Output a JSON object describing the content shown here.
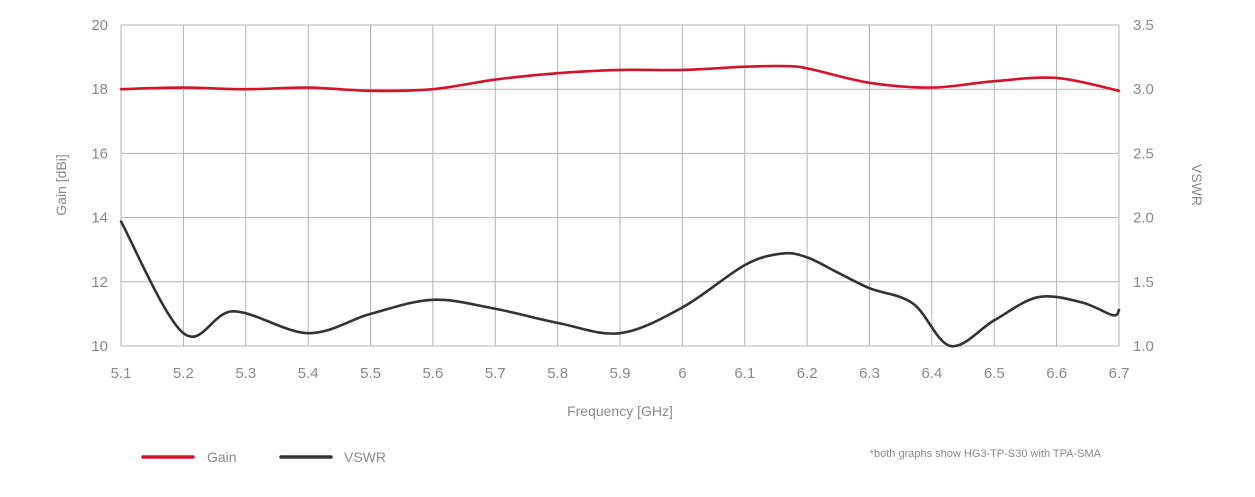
{
  "chart_data": {
    "type": "line",
    "xlabel": "Frequency [GHz]",
    "ylabel_left": "Gain [dBi]",
    "ylabel_right": "VSWR",
    "x_ticks": [
      "5.1",
      "5.2",
      "5.3",
      "5.4",
      "5.5",
      "5.6",
      "5.7",
      "5.8",
      "5.9",
      "6",
      "6.1",
      "6.2",
      "6.3",
      "6.4",
      "6.5",
      "6.6",
      "6.7"
    ],
    "y_left_ticks": [
      "20",
      "18",
      "16",
      "14",
      "12",
      "10"
    ],
    "y_right_ticks": [
      "3.5",
      "3.0",
      "2.5",
      "2.0",
      "1.5",
      "1.0"
    ],
    "xlim": [
      5.1,
      6.7
    ],
    "ylim_left": [
      10,
      20
    ],
    "ylim_right": [
      1.0,
      3.5
    ],
    "grid": true,
    "series": [
      {
        "name": "Gain",
        "axis": "left",
        "color": "#d6112a",
        "x": [
          5.1,
          5.2,
          5.3,
          5.4,
          5.5,
          5.6,
          5.7,
          5.8,
          5.9,
          6.0,
          6.1,
          6.16,
          6.2,
          6.3,
          6.4,
          6.5,
          6.6,
          6.7
        ],
        "y": [
          18.0,
          18.05,
          18.0,
          18.05,
          17.95,
          18.0,
          18.3,
          18.5,
          18.6,
          18.6,
          18.7,
          18.72,
          18.65,
          18.2,
          18.05,
          18.25,
          18.35,
          17.95
        ]
      },
      {
        "name": "VSWR",
        "axis": "right",
        "color": "#333333",
        "x": [
          5.1,
          5.2,
          5.28,
          5.4,
          5.5,
          5.6,
          5.7,
          5.8,
          5.9,
          6.0,
          6.1,
          6.16,
          6.2,
          6.25,
          6.3,
          6.37,
          6.43,
          6.5,
          6.57,
          6.64,
          6.69,
          6.7
        ],
        "y": [
          1.97,
          1.1,
          1.27,
          1.1,
          1.25,
          1.36,
          1.29,
          1.18,
          1.1,
          1.3,
          1.63,
          1.72,
          1.69,
          1.57,
          1.45,
          1.33,
          1.0,
          1.2,
          1.38,
          1.34,
          1.24,
          1.28
        ]
      }
    ],
    "legend": {
      "position": "bottom-left",
      "items": [
        {
          "label": "Gain",
          "color": "#d6112a"
        },
        {
          "label": "VSWR",
          "color": "#333333"
        }
      ]
    },
    "note": "*both graphs show HG3-TP-S30 with TPA-SMA"
  }
}
